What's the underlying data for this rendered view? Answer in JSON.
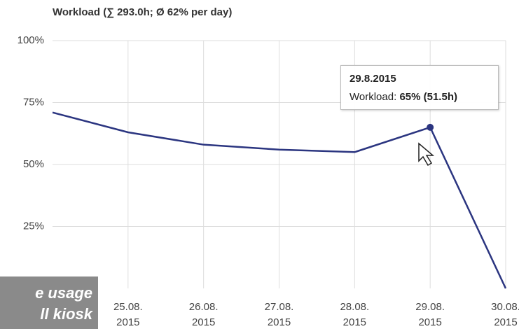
{
  "chart_data": {
    "type": "line",
    "title": "Workload (∑ 293.0h; Ø 62% per day)",
    "categories": [
      null,
      "25.08.\n2015",
      "26.08.\n2015",
      "27.08.\n2015",
      "28.08.\n2015",
      "29.08.\n2015",
      "30.08.\n2015"
    ],
    "series": [
      {
        "name": "Workload",
        "color": "#2b3580",
        "values": [
          71,
          63,
          58,
          56,
          55,
          65,
          0
        ]
      }
    ],
    "ylim": [
      0,
      100
    ],
    "yticks": [
      {
        "value": 25,
        "label": "25%"
      },
      {
        "value": 50,
        "label": "50%"
      },
      {
        "value": 75,
        "label": "75%"
      },
      {
        "value": 100,
        "label": "100%"
      }
    ],
    "grid": true,
    "tooltip": {
      "index": 5,
      "title": "29.8.2015",
      "label": "Workload:",
      "value_label": "65% (51.5h)"
    },
    "annotations": [
      "e usage",
      "ll kiosk"
    ]
  }
}
